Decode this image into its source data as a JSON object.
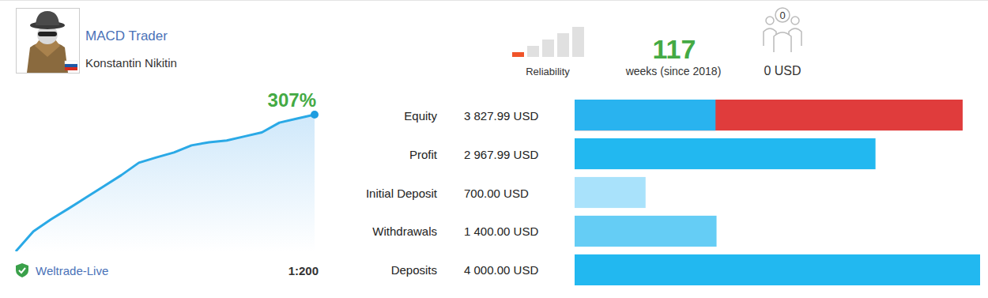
{
  "header": {
    "title": "MACD Trader",
    "author": "Konstantin Nikitin",
    "reliability": 1,
    "reliability_max": 5,
    "reliability_label": "Reliability",
    "weeks": 117,
    "weeks_label": "weeks (since 2018)",
    "subscribers": 0,
    "subscribers_funds": "0 USD",
    "server": "Weltrade-Live",
    "leverage": "1:200"
  },
  "chart_data": [
    {
      "type": "line",
      "title": "307%",
      "values": [
        0,
        45,
        72,
        96,
        121,
        146,
        171,
        199,
        211,
        222,
        238,
        245,
        249,
        258,
        267,
        289,
        298,
        307
      ],
      "color": "#2aa9e6",
      "ylim": [
        0,
        307
      ],
      "yticks": [
        0,
        307
      ],
      "tick_labels": false,
      "grid": false
    },
    {
      "type": "bar",
      "orientation": "horizontal",
      "categories": [
        "Equity",
        "Profit",
        "Initial Deposit",
        "Withdrawals",
        "Deposits"
      ],
      "values": [
        3827.99,
        2967.99,
        700,
        1400,
        4000
      ],
      "value_labels": [
        "3 827.99 USD",
        "2 967.99 USD",
        "700.00 USD",
        "1 400.00 USD",
        "4 000.00 USD"
      ],
      "colors": [
        "#e03c3c",
        "#22b8f0",
        "#a9e2fb",
        "#65cdf5",
        "#22b8f0"
      ],
      "overlay": {
        "category": "Equity",
        "value": 1390,
        "color": "#29b3ef"
      },
      "xlim": [
        0,
        4000
      ],
      "xticks": [
        0,
        4000
      ],
      "tick_labels": false,
      "grid": false,
      "data_labels": true
    }
  ]
}
